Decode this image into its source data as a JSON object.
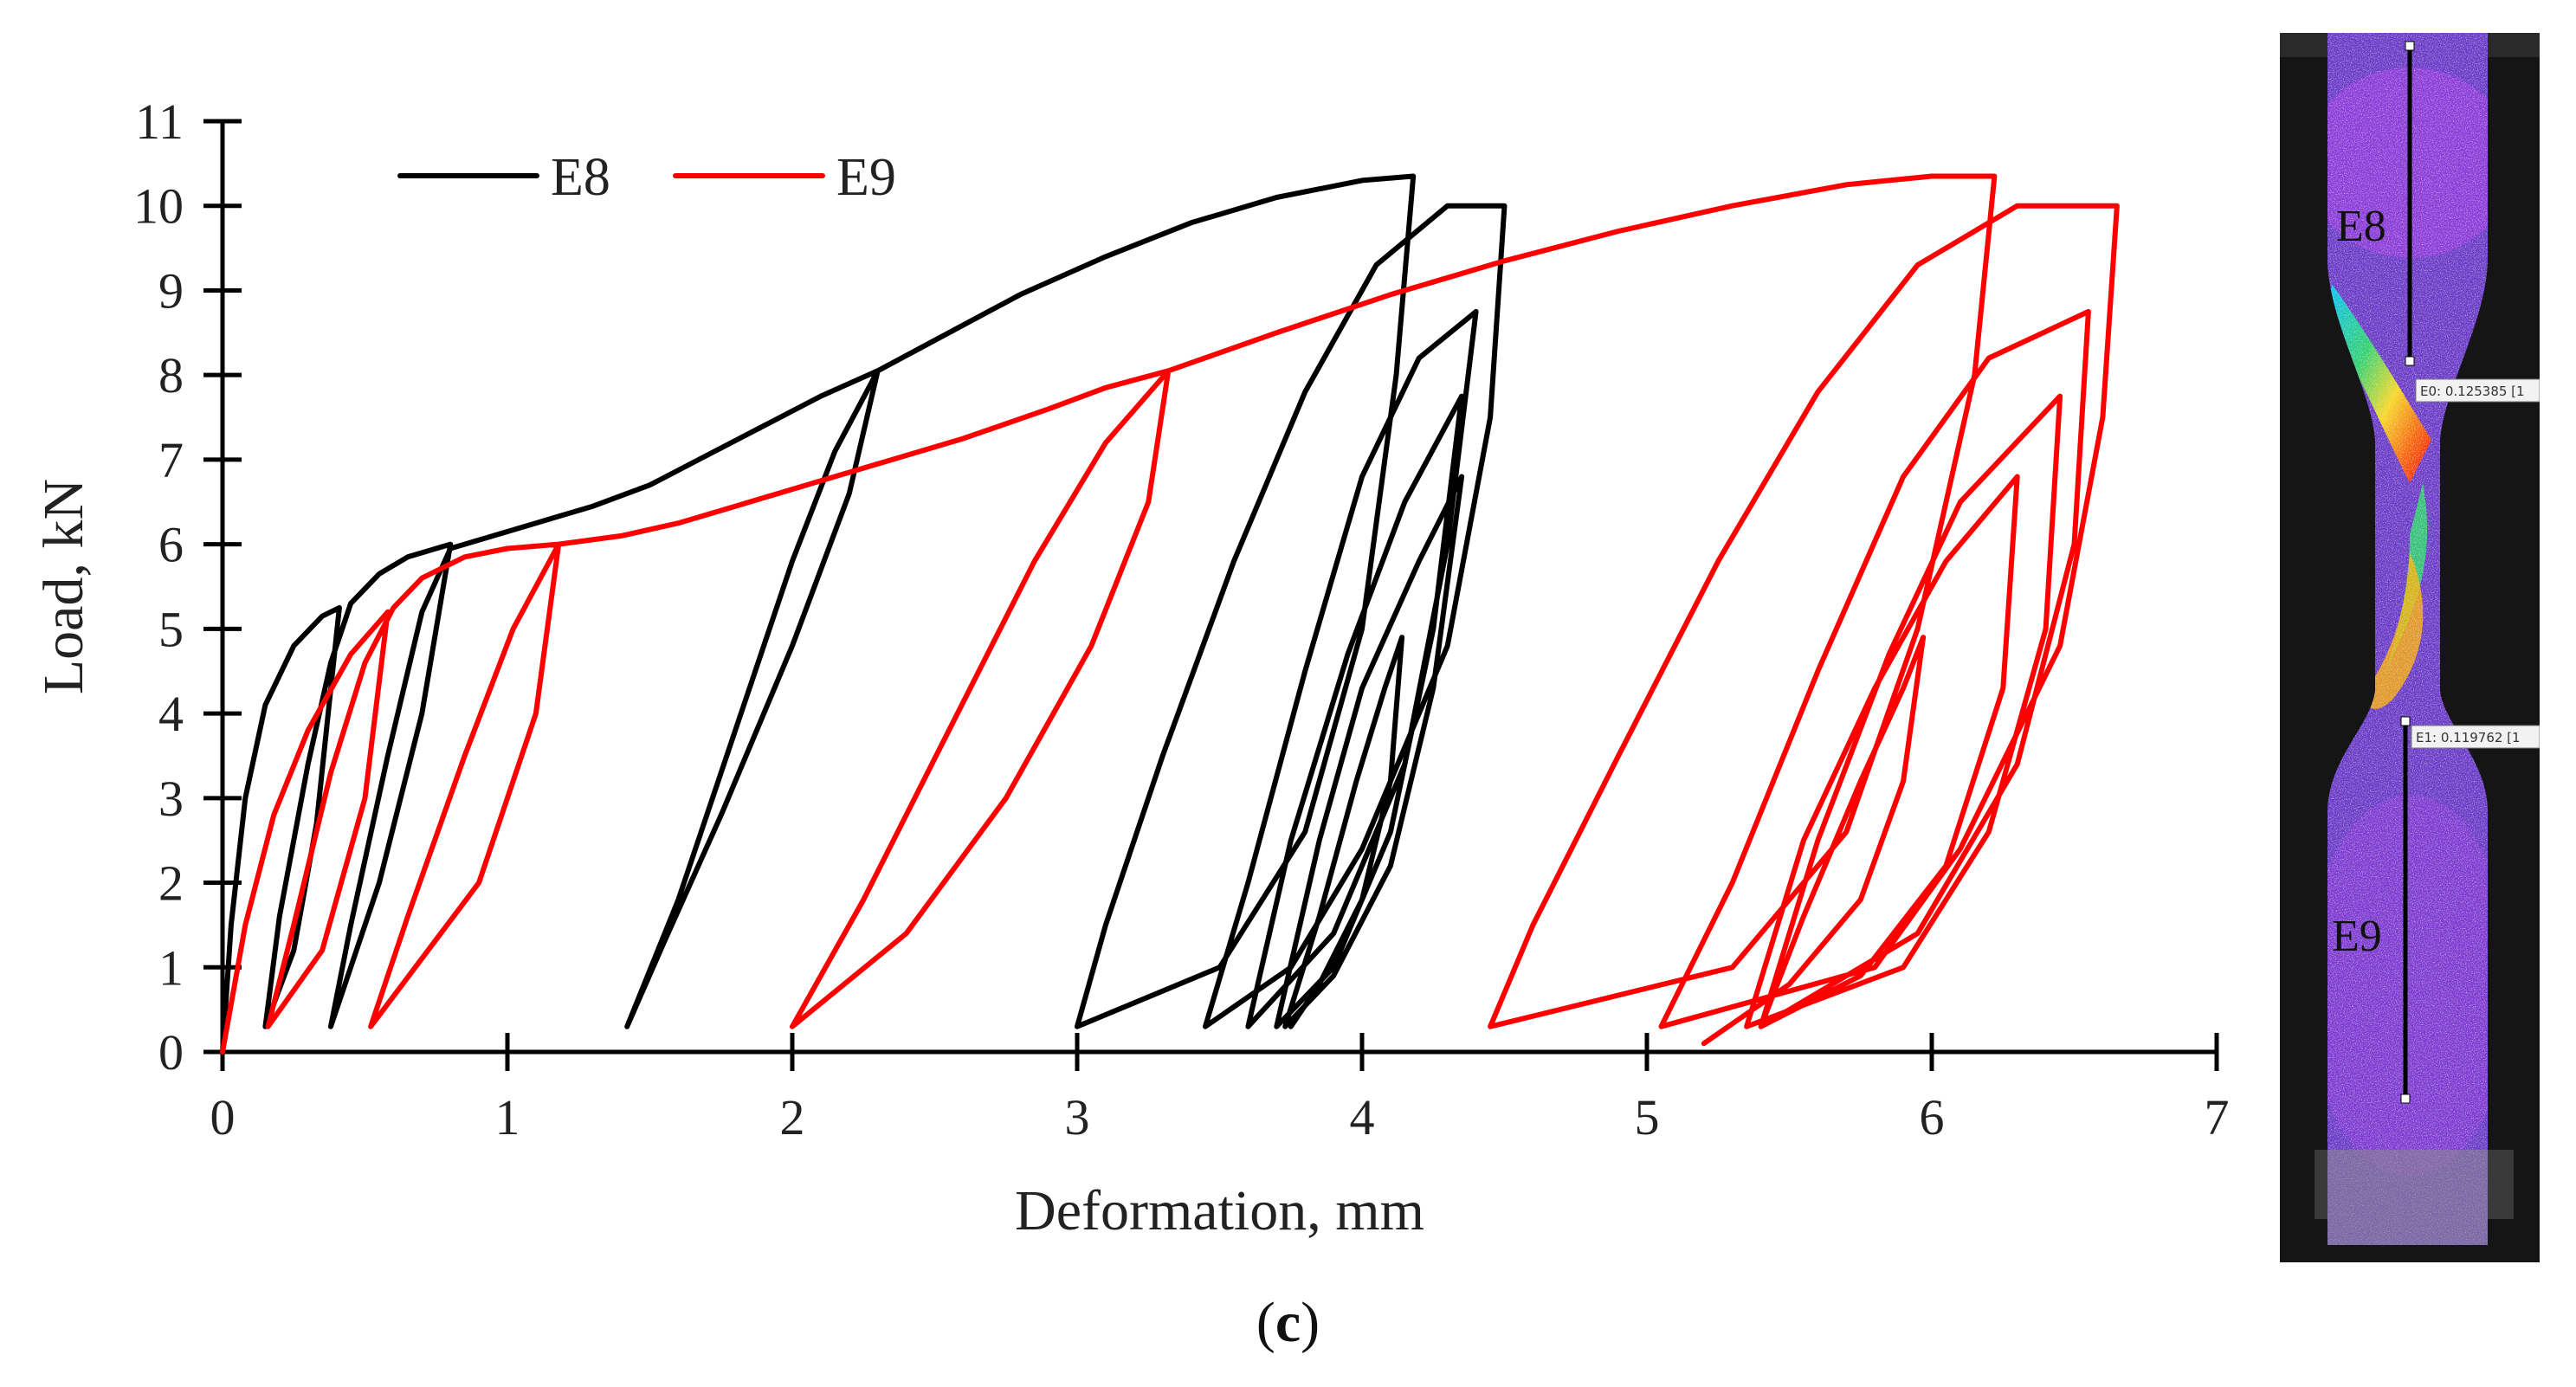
{
  "caption": {
    "open": "(",
    "letter": "c",
    "close": ")"
  },
  "chart_data": {
    "type": "line",
    "title": "",
    "xlabel": "Deformation, mm",
    "ylabel": "Load, kN",
    "xlim": [
      0,
      7
    ],
    "ylim": [
      0,
      11
    ],
    "xticks": [
      0,
      1,
      2,
      3,
      4,
      5,
      6,
      7
    ],
    "yticks": [
      0,
      1,
      2,
      3,
      4,
      5,
      6,
      7,
      8,
      9,
      10,
      11
    ],
    "grid": false,
    "legend": {
      "position": "top-left",
      "orientation": "horizontal"
    },
    "series": [
      {
        "name": "E8",
        "color": "#000000",
        "points": [
          [
            0,
            0.0
          ],
          [
            0.03,
            1.5
          ],
          [
            0.08,
            3.0
          ],
          [
            0.15,
            4.1
          ],
          [
            0.25,
            4.8
          ],
          [
            0.35,
            5.15
          ],
          [
            0.41,
            5.25
          ],
          [
            0.33,
            2.7
          ],
          [
            0.25,
            1.2
          ],
          [
            0.15,
            0.3
          ],
          [
            0.2,
            1.6
          ],
          [
            0.3,
            3.4
          ],
          [
            0.38,
            4.6
          ],
          [
            0.45,
            5.3
          ],
          [
            0.55,
            5.65
          ],
          [
            0.65,
            5.85
          ],
          [
            0.75,
            5.95
          ],
          [
            0.8,
            6.0
          ],
          [
            0.7,
            4.0
          ],
          [
            0.55,
            2.0
          ],
          [
            0.38,
            0.3
          ],
          [
            0.45,
            1.5
          ],
          [
            0.58,
            3.5
          ],
          [
            0.7,
            5.2
          ],
          [
            0.8,
            5.95
          ],
          [
            0.95,
            6.1
          ],
          [
            1.1,
            6.25
          ],
          [
            1.3,
            6.45
          ],
          [
            1.5,
            6.7
          ],
          [
            1.7,
            7.05
          ],
          [
            1.9,
            7.4
          ],
          [
            2.1,
            7.75
          ],
          [
            2.3,
            8.05
          ],
          [
            2.2,
            6.6
          ],
          [
            2.0,
            4.8
          ],
          [
            1.75,
            2.8
          ],
          [
            1.55,
            1.3
          ],
          [
            1.42,
            0.3
          ],
          [
            1.6,
            1.8
          ],
          [
            1.8,
            3.8
          ],
          [
            2.0,
            5.8
          ],
          [
            2.15,
            7.1
          ],
          [
            2.3,
            8.05
          ],
          [
            2.55,
            8.5
          ],
          [
            2.8,
            8.95
          ],
          [
            3.1,
            9.4
          ],
          [
            3.4,
            9.8
          ],
          [
            3.7,
            10.1
          ],
          [
            4.0,
            10.3
          ],
          [
            4.18,
            10.35
          ],
          [
            4.12,
            8.0
          ],
          [
            4.0,
            5.0
          ],
          [
            3.8,
            2.6
          ],
          [
            3.5,
            1.0
          ],
          [
            3.0,
            0.3
          ],
          [
            3.1,
            1.5
          ],
          [
            3.3,
            3.5
          ],
          [
            3.55,
            5.8
          ],
          [
            3.8,
            7.8
          ],
          [
            4.05,
            9.3
          ],
          [
            4.3,
            10.0
          ],
          [
            4.5,
            10.0
          ],
          [
            4.45,
            7.5
          ],
          [
            4.3,
            4.8
          ],
          [
            4.0,
            2.4
          ],
          [
            3.75,
            1.0
          ],
          [
            3.45,
            0.3
          ],
          [
            3.6,
            2.0
          ],
          [
            3.8,
            4.5
          ],
          [
            4.0,
            6.8
          ],
          [
            4.2,
            8.2
          ],
          [
            4.4,
            8.75
          ],
          [
            4.3,
            6.0
          ],
          [
            4.15,
            3.4
          ],
          [
            3.9,
            1.4
          ],
          [
            3.6,
            0.3
          ],
          [
            3.75,
            2.5
          ],
          [
            3.95,
            4.7
          ],
          [
            4.15,
            6.5
          ],
          [
            4.35,
            7.75
          ],
          [
            4.25,
            5.0
          ],
          [
            4.1,
            2.6
          ],
          [
            3.9,
            1.0
          ],
          [
            3.7,
            0.3
          ],
          [
            3.85,
            2.5
          ],
          [
            4.0,
            4.3
          ],
          [
            4.2,
            5.8
          ],
          [
            4.35,
            6.8
          ],
          [
            4.25,
            4.3
          ],
          [
            4.1,
            2.2
          ],
          [
            3.9,
            0.9
          ],
          [
            3.73,
            0.3
          ],
          [
            3.85,
            1.6
          ],
          [
            3.98,
            3.2
          ],
          [
            4.08,
            4.3
          ],
          [
            4.14,
            4.9
          ],
          [
            4.1,
            3.2
          ],
          [
            4.0,
            1.8
          ],
          [
            3.85,
            0.8
          ],
          [
            3.75,
            0.3
          ]
        ]
      },
      {
        "name": "E9",
        "color": "#ff0000",
        "points": [
          [
            0,
            0.0
          ],
          [
            0.08,
            1.5
          ],
          [
            0.18,
            2.8
          ],
          [
            0.3,
            3.8
          ],
          [
            0.45,
            4.7
          ],
          [
            0.58,
            5.2
          ],
          [
            0.5,
            3.0
          ],
          [
            0.35,
            1.2
          ],
          [
            0.16,
            0.3
          ],
          [
            0.25,
            1.5
          ],
          [
            0.38,
            3.3
          ],
          [
            0.5,
            4.6
          ],
          [
            0.6,
            5.25
          ],
          [
            0.7,
            5.6
          ],
          [
            0.85,
            5.85
          ],
          [
            1.0,
            5.95
          ],
          [
            1.18,
            6.0
          ],
          [
            1.1,
            4.0
          ],
          [
            0.9,
            2.0
          ],
          [
            0.52,
            0.3
          ],
          [
            0.65,
            1.6
          ],
          [
            0.85,
            3.5
          ],
          [
            1.02,
            5.0
          ],
          [
            1.18,
            6.0
          ],
          [
            1.4,
            6.1
          ],
          [
            1.6,
            6.25
          ],
          [
            1.8,
            6.45
          ],
          [
            2.0,
            6.65
          ],
          [
            2.3,
            6.95
          ],
          [
            2.6,
            7.25
          ],
          [
            2.9,
            7.6
          ],
          [
            3.1,
            7.85
          ],
          [
            3.32,
            8.05
          ],
          [
            3.25,
            6.5
          ],
          [
            3.05,
            4.8
          ],
          [
            2.75,
            3.0
          ],
          [
            2.4,
            1.4
          ],
          [
            2.0,
            0.3
          ],
          [
            2.25,
            1.8
          ],
          [
            2.55,
            3.8
          ],
          [
            2.85,
            5.8
          ],
          [
            3.1,
            7.2
          ],
          [
            3.32,
            8.05
          ],
          [
            3.7,
            8.5
          ],
          [
            4.1,
            8.95
          ],
          [
            4.5,
            9.35
          ],
          [
            4.9,
            9.7
          ],
          [
            5.3,
            10.0
          ],
          [
            5.7,
            10.25
          ],
          [
            6.0,
            10.35
          ],
          [
            6.22,
            10.35
          ],
          [
            6.15,
            8.0
          ],
          [
            5.95,
            5.0
          ],
          [
            5.7,
            2.6
          ],
          [
            5.3,
            1.0
          ],
          [
            4.45,
            0.3
          ],
          [
            4.6,
            1.5
          ],
          [
            4.9,
            3.5
          ],
          [
            5.25,
            5.8
          ],
          [
            5.6,
            7.8
          ],
          [
            5.95,
            9.3
          ],
          [
            6.3,
            10.0
          ],
          [
            6.65,
            10.0
          ],
          [
            6.6,
            7.5
          ],
          [
            6.45,
            4.8
          ],
          [
            6.1,
            2.4
          ],
          [
            5.8,
            1.0
          ],
          [
            5.05,
            0.3
          ],
          [
            5.3,
            2.0
          ],
          [
            5.6,
            4.5
          ],
          [
            5.9,
            6.8
          ],
          [
            6.2,
            8.2
          ],
          [
            6.55,
            8.75
          ],
          [
            6.5,
            6.0
          ],
          [
            6.3,
            3.4
          ],
          [
            5.95,
            1.4
          ],
          [
            5.4,
            0.3
          ],
          [
            5.6,
            2.5
          ],
          [
            5.85,
            4.7
          ],
          [
            6.1,
            6.5
          ],
          [
            6.45,
            7.75
          ],
          [
            6.4,
            5.0
          ],
          [
            6.2,
            2.6
          ],
          [
            5.9,
            1.0
          ],
          [
            5.35,
            0.3
          ],
          [
            5.55,
            2.5
          ],
          [
            5.8,
            4.3
          ],
          [
            6.05,
            5.8
          ],
          [
            6.3,
            6.8
          ],
          [
            6.25,
            4.3
          ],
          [
            6.05,
            2.2
          ],
          [
            5.75,
            0.9
          ],
          [
            5.4,
            0.3
          ],
          [
            5.55,
            1.6
          ],
          [
            5.75,
            3.2
          ],
          [
            5.9,
            4.3
          ],
          [
            5.97,
            4.9
          ],
          [
            5.9,
            3.2
          ],
          [
            5.75,
            1.8
          ],
          [
            5.5,
            0.8
          ],
          [
            5.2,
            0.1
          ]
        ]
      }
    ]
  },
  "photo": {
    "labels": {
      "upper_gauge": "E8",
      "lower_gauge": "E9"
    },
    "readouts": {
      "upper": "E0: 0.125385 [1",
      "lower": "E1: 0.119762 [1"
    },
    "colors": {
      "background": "#1a1a1a",
      "specimen_base": "#7a3fd0",
      "specimen_speckle": "#c9c9c9"
    }
  }
}
